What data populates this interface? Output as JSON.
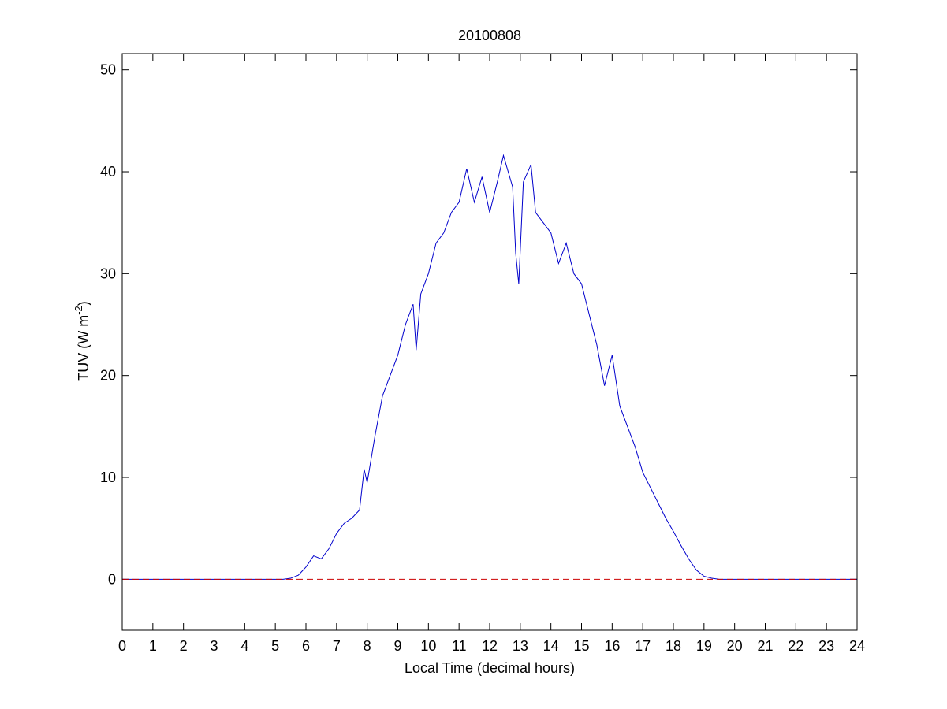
{
  "chart_data": {
    "type": "line",
    "title": "20100808",
    "xlabel": "Local Time (decimal hours)",
    "ylabel_parts": [
      "TUV (W m",
      "-2",
      ")"
    ],
    "x": [
      0,
      5,
      5.25,
      5.5,
      5.75,
      6,
      6.25,
      6.5,
      6.75,
      7,
      7.25,
      7.5,
      7.75,
      7.9,
      8,
      8.25,
      8.5,
      8.75,
      9,
      9.25,
      9.5,
      9.6,
      9.75,
      10,
      10.25,
      10.5,
      10.75,
      11,
      11.25,
      11.5,
      11.75,
      12,
      12.25,
      12.45,
      12.75,
      12.85,
      12.95,
      13.1,
      13.35,
      13.5,
      13.75,
      14,
      14.25,
      14.5,
      14.75,
      15,
      15.25,
      15.5,
      15.75,
      16,
      16.25,
      16.5,
      16.75,
      17,
      17.25,
      17.5,
      17.75,
      18,
      18.25,
      18.5,
      18.75,
      19,
      19.25,
      19.5,
      20,
      24
    ],
    "values": [
      0,
      0,
      0,
      0.1,
      0.4,
      1.2,
      2.3,
      2.0,
      3.0,
      4.5,
      5.5,
      6.0,
      6.8,
      10.8,
      9.5,
      14,
      18,
      20,
      22,
      25,
      27,
      22.5,
      28,
      30,
      33,
      34,
      36,
      37,
      40.3,
      37,
      39.5,
      36,
      39,
      41.6,
      38.5,
      32,
      29,
      39,
      40.7,
      36,
      35,
      34,
      31,
      33,
      30,
      29,
      26,
      23,
      19,
      22,
      17,
      15,
      13,
      10.5,
      9,
      7.5,
      6,
      4.7,
      3.3,
      2.0,
      0.9,
      0.3,
      0.1,
      0,
      0,
      0
    ],
    "color": "#0000cc",
    "reference_line": {
      "y": 0,
      "color": "#cc0000",
      "style": "dashed"
    },
    "xlim": [
      0,
      24
    ],
    "xticks": [
      0,
      1,
      2,
      3,
      4,
      5,
      6,
      7,
      8,
      9,
      10,
      11,
      12,
      13,
      14,
      15,
      16,
      17,
      18,
      19,
      20,
      21,
      22,
      23,
      24
    ],
    "ylim": [
      -5,
      51.6
    ],
    "yticks": [
      0,
      10,
      20,
      30,
      40,
      50
    ],
    "grid": false
  }
}
